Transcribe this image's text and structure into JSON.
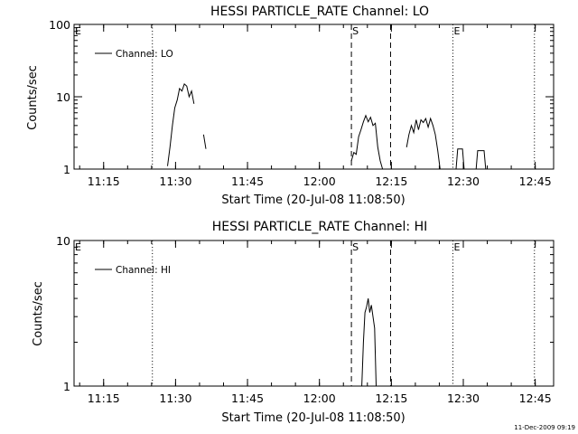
{
  "chart_data": [
    {
      "type": "line",
      "title": "HESSI PARTICLE_RATE Channel: LO",
      "xlabel": "Start Time (20-Jul-08 11:08:50)",
      "ylabel": "Counts/sec",
      "y_scale": "log",
      "ylim": [
        1,
        100
      ],
      "xlim": [
        "11:08:50",
        "12:48:50"
      ],
      "x_ticks": [
        "11:15",
        "11:30",
        "11:45",
        "12:00",
        "12:15",
        "12:30",
        "12:45"
      ],
      "y_ticks": [
        "1",
        "10",
        "100"
      ],
      "legend": [
        "Channel: LO"
      ],
      "legend_position": "top-left",
      "grid": false,
      "markers": [
        {
          "label": "E",
          "time": "11:08:50",
          "style": "none"
        },
        {
          "label": "",
          "time": "11:25:10",
          "style": "dotted"
        },
        {
          "label": "S",
          "time": "12:06:40",
          "style": "dashed"
        },
        {
          "label": "",
          "time": "12:14:50",
          "style": "dashed"
        },
        {
          "label": "E",
          "time": "12:27:50",
          "style": "dotted"
        },
        {
          "label": "",
          "time": "12:44:50",
          "style": "dotted"
        }
      ],
      "series": [
        {
          "name": "Channel: LO",
          "points": [
            [
              "11:28:20",
              1.1
            ],
            [
              "11:28:50",
              2.0
            ],
            [
              "11:29:20",
              4.0
            ],
            [
              "11:29:50",
              7.0
            ],
            [
              "11:30:20",
              9.0
            ],
            [
              "11:30:50",
              13.0
            ],
            [
              "11:31:20",
              12.0
            ],
            [
              "11:31:50",
              15.0
            ],
            [
              "11:32:20",
              14.0
            ],
            [
              "11:32:50",
              10.0
            ],
            [
              "11:33:20",
              12.0
            ],
            [
              "11:33:50",
              8.0
            ]
          ]
        },
        {
          "name": "Channel: LO",
          "points": [
            [
              "11:35:50",
              3.0
            ],
            [
              "11:36:20",
              1.9
            ]
          ]
        },
        {
          "name": "Channel: LO",
          "points": [
            [
              "12:06:40",
              1.3
            ],
            [
              "12:07:10",
              1.7
            ],
            [
              "12:07:40",
              1.6
            ],
            [
              "12:08:10",
              2.8
            ],
            [
              "12:08:40",
              3.5
            ],
            [
              "12:09:10",
              4.5
            ],
            [
              "12:09:40",
              5.5
            ],
            [
              "12:10:10",
              4.5
            ],
            [
              "12:10:40",
              5.2
            ],
            [
              "12:11:10",
              4.0
            ],
            [
              "12:11:40",
              4.3
            ],
            [
              "12:12:10",
              2.0
            ],
            [
              "12:12:40",
              1.3
            ],
            [
              "12:13:10",
              1.0
            ]
          ]
        },
        {
          "name": "Channel: LO",
          "points": [
            [
              "12:18:10",
              2.0
            ],
            [
              "12:18:40",
              3.0
            ],
            [
              "12:19:10",
              4.0
            ],
            [
              "12:19:40",
              3.2
            ],
            [
              "12:20:10",
              4.8
            ],
            [
              "12:20:40",
              3.5
            ],
            [
              "12:21:10",
              4.8
            ],
            [
              "12:21:40",
              4.4
            ],
            [
              "12:22:10",
              5.0
            ],
            [
              "12:22:40",
              3.8
            ],
            [
              "12:23:10",
              5.0
            ],
            [
              "12:23:40",
              4.0
            ],
            [
              "12:24:10",
              3.0
            ],
            [
              "12:24:40",
              1.8
            ],
            [
              "12:25:10",
              1.0
            ]
          ]
        },
        {
          "name": "Channel: LO",
          "points": [
            [
              "12:28:30",
              1.0
            ],
            [
              "12:28:50",
              1.9
            ],
            [
              "12:29:50",
              1.9
            ],
            [
              "12:30:10",
              1.0
            ]
          ]
        },
        {
          "name": "Channel: LO",
          "points": [
            [
              "12:32:40",
              1.0
            ],
            [
              "12:33:00",
              1.8
            ],
            [
              "12:34:20",
              1.8
            ],
            [
              "12:34:40",
              1.0
            ]
          ]
        }
      ]
    },
    {
      "type": "line",
      "title": "HESSI PARTICLE_RATE Channel: HI",
      "xlabel": "Start Time (20-Jul-08 11:08:50)",
      "ylabel": "Counts/sec",
      "y_scale": "log",
      "ylim": [
        1,
        10
      ],
      "xlim": [
        "11:08:50",
        "12:48:50"
      ],
      "x_ticks": [
        "11:15",
        "11:30",
        "11:45",
        "12:00",
        "12:15",
        "12:30",
        "12:45"
      ],
      "y_ticks": [
        "1",
        "10"
      ],
      "legend": [
        "Channel: HI"
      ],
      "legend_position": "top-left",
      "grid": false,
      "markers": [
        {
          "label": "E",
          "time": "11:08:50",
          "style": "none"
        },
        {
          "label": "",
          "time": "11:25:10",
          "style": "dotted"
        },
        {
          "label": "S",
          "time": "12:06:40",
          "style": "dashed"
        },
        {
          "label": "",
          "time": "12:14:50",
          "style": "dashed"
        },
        {
          "label": "E",
          "time": "12:27:50",
          "style": "dotted"
        },
        {
          "label": "",
          "time": "12:44:50",
          "style": "dotted"
        }
      ],
      "series": [
        {
          "name": "Channel: HI",
          "points": [
            [
              "12:08:50",
              1.0
            ],
            [
              "12:09:10",
              2.0
            ],
            [
              "12:09:30",
              3.2
            ],
            [
              "12:09:50",
              3.5
            ],
            [
              "12:10:10",
              4.0
            ],
            [
              "12:10:30",
              3.2
            ],
            [
              "12:10:50",
              3.6
            ],
            [
              "12:11:10",
              3.0
            ],
            [
              "12:11:30",
              2.5
            ],
            [
              "12:11:50",
              1.0
            ]
          ]
        }
      ]
    }
  ],
  "footer": {
    "timestamp": "11-Dec-2009 09:19"
  }
}
